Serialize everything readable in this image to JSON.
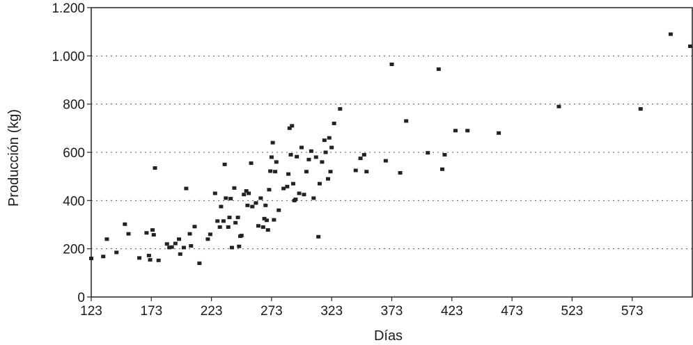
{
  "chart_data": {
    "type": "scatter",
    "title": "",
    "xlabel": "Días",
    "ylabel": "Producción (kg)",
    "xlim": [
      123,
      623
    ],
    "ylim": [
      0,
      1200
    ],
    "x_ticks": [
      123,
      173,
      223,
      273,
      323,
      373,
      423,
      473,
      523,
      573
    ],
    "y_ticks": [
      0,
      200,
      400,
      600,
      800,
      1000,
      1200
    ],
    "y_tick_labels": [
      "0",
      "200",
      "400",
      "600",
      "800",
      "1.000",
      "1.200"
    ],
    "grid": "horizontal dotted",
    "points": [
      [
        123,
        160
      ],
      [
        133,
        168
      ],
      [
        136,
        240
      ],
      [
        144,
        185
      ],
      [
        151,
        302
      ],
      [
        154,
        262
      ],
      [
        163,
        162
      ],
      [
        169,
        266
      ],
      [
        171,
        172
      ],
      [
        172,
        154
      ],
      [
        174,
        278
      ],
      [
        175,
        258
      ],
      [
        176,
        535
      ],
      [
        179,
        152
      ],
      [
        186,
        220
      ],
      [
        188,
        205
      ],
      [
        190,
        207
      ],
      [
        193,
        222
      ],
      [
        196,
        240
      ],
      [
        197,
        178
      ],
      [
        200,
        205
      ],
      [
        202,
        450
      ],
      [
        205,
        262
      ],
      [
        206,
        212
      ],
      [
        209,
        292
      ],
      [
        213,
        140
      ],
      [
        220,
        240
      ],
      [
        222,
        260
      ],
      [
        226,
        430
      ],
      [
        228,
        315
      ],
      [
        230,
        290
      ],
      [
        231,
        375
      ],
      [
        233,
        315
      ],
      [
        234,
        550
      ],
      [
        235,
        410
      ],
      [
        237,
        290
      ],
      [
        238,
        330
      ],
      [
        239,
        408
      ],
      [
        240,
        205
      ],
      [
        242,
        452
      ],
      [
        243,
        308
      ],
      [
        245,
        330
      ],
      [
        246,
        210
      ],
      [
        247,
        252
      ],
      [
        248,
        255
      ],
      [
        250,
        425
      ],
      [
        252,
        440
      ],
      [
        253,
        380
      ],
      [
        254,
        430
      ],
      [
        256,
        555
      ],
      [
        257,
        375
      ],
      [
        260,
        390
      ],
      [
        262,
        295
      ],
      [
        264,
        410
      ],
      [
        266,
        290
      ],
      [
        267,
        325
      ],
      [
        268,
        380
      ],
      [
        269,
        318
      ],
      [
        270,
        278
      ],
      [
        271,
        445
      ],
      [
        272,
        522
      ],
      [
        273,
        580
      ],
      [
        274,
        640
      ],
      [
        275,
        320
      ],
      [
        276,
        520
      ],
      [
        277,
        560
      ],
      [
        279,
        360
      ],
      [
        283,
        450
      ],
      [
        286,
        458
      ],
      [
        287,
        510
      ],
      [
        288,
        700
      ],
      [
        289,
        590
      ],
      [
        290,
        710
      ],
      [
        291,
        470
      ],
      [
        292,
        400
      ],
      [
        293,
        405
      ],
      [
        294,
        582
      ],
      [
        296,
        430
      ],
      [
        298,
        620
      ],
      [
        300,
        425
      ],
      [
        302,
        520
      ],
      [
        304,
        570
      ],
      [
        306,
        605
      ],
      [
        308,
        410
      ],
      [
        310,
        580
      ],
      [
        312,
        250
      ],
      [
        313,
        470
      ],
      [
        315,
        560
      ],
      [
        317,
        650
      ],
      [
        318,
        600
      ],
      [
        320,
        490
      ],
      [
        321,
        660
      ],
      [
        322,
        520
      ],
      [
        323,
        620
      ],
      [
        325,
        720
      ],
      [
        330,
        780
      ],
      [
        343,
        525
      ],
      [
        347,
        575
      ],
      [
        350,
        590
      ],
      [
        352,
        520
      ],
      [
        368,
        565
      ],
      [
        373,
        965
      ],
      [
        380,
        515
      ],
      [
        385,
        730
      ],
      [
        403,
        598
      ],
      [
        412,
        945
      ],
      [
        415,
        530
      ],
      [
        417,
        590
      ],
      [
        426,
        690
      ],
      [
        436,
        690
      ],
      [
        462,
        680
      ],
      [
        512,
        790
      ],
      [
        580,
        780
      ],
      [
        605,
        1090
      ],
      [
        623,
        1040
      ]
    ]
  }
}
